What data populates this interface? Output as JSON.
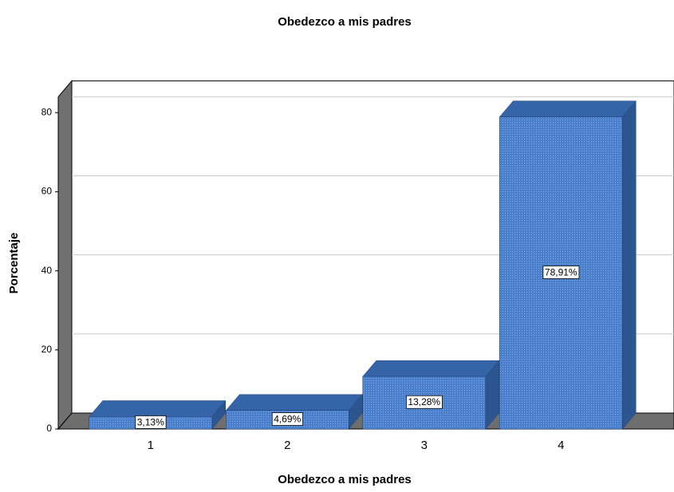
{
  "chart_data": {
    "type": "bar",
    "title": "Obedezco a mis padres",
    "x_label": "Obedezco a mis padres",
    "y_label": "Porcentaje",
    "categories": [
      "1",
      "2",
      "3",
      "4"
    ],
    "values": [
      3.13,
      4.69,
      13.28,
      78.91
    ],
    "value_labels": [
      "3,13%",
      "4,69%",
      "13,28%",
      "78,91%"
    ],
    "color": "#4a7fcc",
    "ylim": [
      0,
      84
    ],
    "yticks": [
      0,
      20,
      40,
      60,
      80
    ],
    "grid": true
  }
}
